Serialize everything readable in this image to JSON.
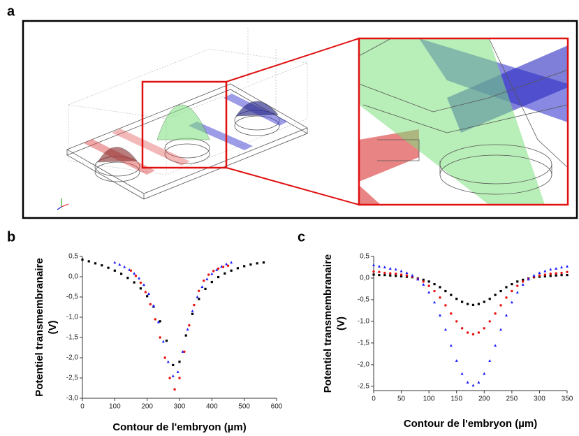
{
  "panel_labels": [
    "a",
    "b",
    "c"
  ],
  "chart_data": [
    {
      "type": "scatter",
      "ylabel": "Potentiel transmembranaire",
      "ylabel_unit": "(V)",
      "xlabel": "Contour de l'embryon (µm)",
      "xlim": [
        0,
        600
      ],
      "xticks": [
        0,
        100,
        200,
        300,
        400,
        500,
        600
      ],
      "ylim": [
        -3.0,
        0.5
      ],
      "yticks": [
        {
          "value": 0.5,
          "label": "0,5"
        },
        {
          "value": 0.0,
          "label": "0,0"
        },
        {
          "value": -0.5,
          "label": "-0,5"
        },
        {
          "value": -1.0,
          "label": "-1,0"
        },
        {
          "value": -1.5,
          "label": "-1,5"
        },
        {
          "value": -2.0,
          "label": "-2,0"
        },
        {
          "value": -2.5,
          "label": "-2,5"
        },
        {
          "value": -3.0,
          "label": "-3,0"
        }
      ],
      "series": [
        {
          "color": "#000000",
          "marker": "square",
          "x": [
            0,
            20,
            40,
            60,
            80,
            100,
            120,
            140,
            160,
            180,
            200,
            220,
            240,
            260,
            280,
            300,
            320,
            340,
            360,
            380,
            400,
            420,
            440,
            460,
            480,
            500,
            520,
            540,
            560
          ],
          "values": [
            0.42,
            0.38,
            0.33,
            0.28,
            0.22,
            0.15,
            0.07,
            -0.03,
            -0.14,
            -0.29,
            -0.48,
            -0.74,
            -1.1,
            -1.58,
            -2.18,
            -2.1,
            -1.45,
            -0.92,
            -0.55,
            -0.3,
            -0.13,
            -0.01,
            0.08,
            0.15,
            0.21,
            0.26,
            0.3,
            0.33,
            0.35
          ]
        },
        {
          "color": "#1a1aff",
          "marker": "triangle",
          "x": [
            100,
            115,
            130,
            145,
            160,
            175,
            190,
            205,
            220,
            235,
            250,
            265,
            280,
            295,
            310,
            325,
            340,
            355,
            370,
            385,
            400,
            415,
            430,
            445,
            460
          ],
          "values": [
            0.35,
            0.3,
            0.24,
            0.17,
            0.08,
            -0.04,
            -0.2,
            -0.42,
            -0.72,
            -1.12,
            -1.6,
            -2.1,
            -2.45,
            -2.35,
            -1.85,
            -1.3,
            -0.85,
            -0.5,
            -0.25,
            -0.06,
            0.07,
            0.17,
            0.25,
            0.31,
            0.35
          ]
        },
        {
          "color": "#e81010",
          "marker": "circle",
          "x": [
            150,
            165,
            180,
            195,
            210,
            225,
            240,
            255,
            270,
            285,
            300,
            315,
            330,
            345,
            360,
            375,
            390,
            405,
            420,
            435,
            450
          ],
          "values": [
            0.15,
            0.02,
            -0.15,
            -0.38,
            -0.68,
            -1.05,
            -1.5,
            -2.0,
            -2.5,
            -2.78,
            -2.5,
            -1.85,
            -1.2,
            -0.7,
            -0.35,
            -0.1,
            0.05,
            0.14,
            0.2,
            0.24,
            0.27
          ]
        }
      ]
    },
    {
      "type": "scatter",
      "ylabel": "Potentiel transmembranaire",
      "ylabel_unit": "(V)",
      "xlabel": "Contour de l'embryon (µm)",
      "xlim": [
        0,
        350
      ],
      "xticks": [
        0,
        50,
        100,
        150,
        200,
        250,
        300,
        350
      ],
      "ylim": [
        -2.6,
        0.5
      ],
      "yticks": [
        {
          "value": 0.5,
          "label": "0,5"
        },
        {
          "value": 0.0,
          "label": "0,0"
        },
        {
          "value": -0.5,
          "label": "-0,5"
        },
        {
          "value": -1.0,
          "label": "-1,0"
        },
        {
          "value": -1.5,
          "label": "-1,5"
        },
        {
          "value": -2.0,
          "label": "-2,0"
        },
        {
          "value": -2.5,
          "label": "-2,5"
        }
      ],
      "series": [
        {
          "color": "#000000",
          "marker": "square",
          "x": [
            0,
            10,
            20,
            30,
            40,
            50,
            60,
            70,
            80,
            90,
            100,
            110,
            120,
            130,
            140,
            150,
            160,
            170,
            180,
            190,
            200,
            210,
            220,
            230,
            240,
            250,
            260,
            270,
            280,
            290,
            300,
            310,
            320,
            330,
            340,
            350
          ],
          "values": [
            0.08,
            0.07,
            0.07,
            0.06,
            0.05,
            0.04,
            0.03,
            0.02,
            -0.01,
            -0.04,
            -0.08,
            -0.14,
            -0.21,
            -0.3,
            -0.39,
            -0.48,
            -0.55,
            -0.6,
            -0.62,
            -0.6,
            -0.55,
            -0.48,
            -0.39,
            -0.3,
            -0.21,
            -0.14,
            -0.08,
            -0.04,
            -0.01,
            0.02,
            0.03,
            0.04,
            0.05,
            0.06,
            0.07,
            0.07
          ]
        },
        {
          "color": "#e81010",
          "marker": "circle",
          "x": [
            0,
            10,
            20,
            30,
            40,
            50,
            60,
            70,
            80,
            90,
            100,
            110,
            120,
            130,
            140,
            150,
            160,
            170,
            180,
            190,
            200,
            210,
            220,
            230,
            240,
            250,
            260,
            270,
            280,
            290,
            300,
            310,
            320,
            330,
            340,
            350
          ],
          "values": [
            0.15,
            0.14,
            0.12,
            0.11,
            0.1,
            0.08,
            0.06,
            0.03,
            -0.02,
            -0.08,
            -0.18,
            -0.3,
            -0.45,
            -0.63,
            -0.82,
            -1.0,
            -1.16,
            -1.26,
            -1.3,
            -1.26,
            -1.16,
            -1.0,
            -0.82,
            -0.63,
            -0.45,
            -0.3,
            -0.18,
            -0.08,
            -0.02,
            0.03,
            0.06,
            0.08,
            0.1,
            0.11,
            0.12,
            0.14
          ]
        },
        {
          "color": "#1a1aff",
          "marker": "triangle",
          "x": [
            0,
            10,
            20,
            30,
            40,
            50,
            60,
            70,
            80,
            90,
            100,
            110,
            120,
            130,
            140,
            150,
            160,
            170,
            180,
            190,
            200,
            210,
            220,
            230,
            240,
            250,
            260,
            270,
            280,
            290,
            300,
            310,
            320,
            330,
            340,
            350
          ],
          "values": [
            0.3,
            0.27,
            0.25,
            0.22,
            0.2,
            0.16,
            0.12,
            0.06,
            -0.03,
            -0.15,
            -0.33,
            -0.56,
            -0.86,
            -1.19,
            -1.56,
            -1.91,
            -2.21,
            -2.41,
            -2.48,
            -2.41,
            -2.21,
            -1.91,
            -1.56,
            -1.19,
            -0.86,
            -0.56,
            -0.33,
            -0.15,
            -0.03,
            0.06,
            0.12,
            0.16,
            0.2,
            0.22,
            0.25,
            0.27
          ]
        }
      ]
    }
  ]
}
